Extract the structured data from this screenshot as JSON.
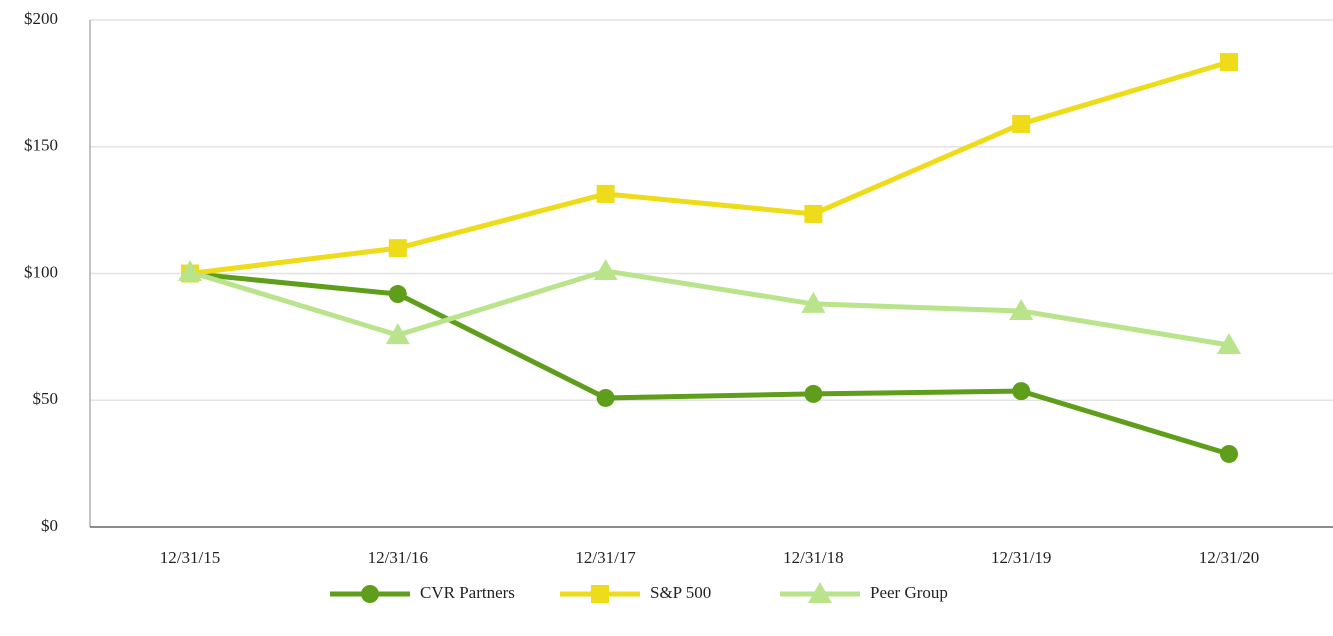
{
  "chart_data": {
    "type": "line",
    "categories": [
      "12/31/15",
      "12/31/16",
      "12/31/17",
      "12/31/18",
      "12/31/19",
      "12/31/20"
    ],
    "series": [
      {
        "name": "CVR Partners",
        "color": "#5f9e1b",
        "marker": "circle",
        "values": [
          100,
          91.9,
          50.9,
          52.5,
          53.6,
          28.8
        ]
      },
      {
        "name": "S&P 500",
        "color": "#eedb1a",
        "marker": "square",
        "values": [
          100,
          110,
          131.4,
          123.5,
          159,
          183.4
        ]
      },
      {
        "name": "Peer Group",
        "color": "#b9e48c",
        "marker": "triangle",
        "values": [
          100.6,
          75.7,
          101,
          88,
          85.2,
          71.8
        ]
      }
    ],
    "ylim": [
      0,
      200
    ],
    "yticks": [
      {
        "value": 0,
        "label": "$0"
      },
      {
        "value": 50,
        "label": "$50"
      },
      {
        "value": 100,
        "label": "$100"
      },
      {
        "value": 150,
        "label": "$150"
      },
      {
        "value": 200,
        "label": "$200"
      }
    ],
    "grid": true,
    "legend": "bottom"
  }
}
